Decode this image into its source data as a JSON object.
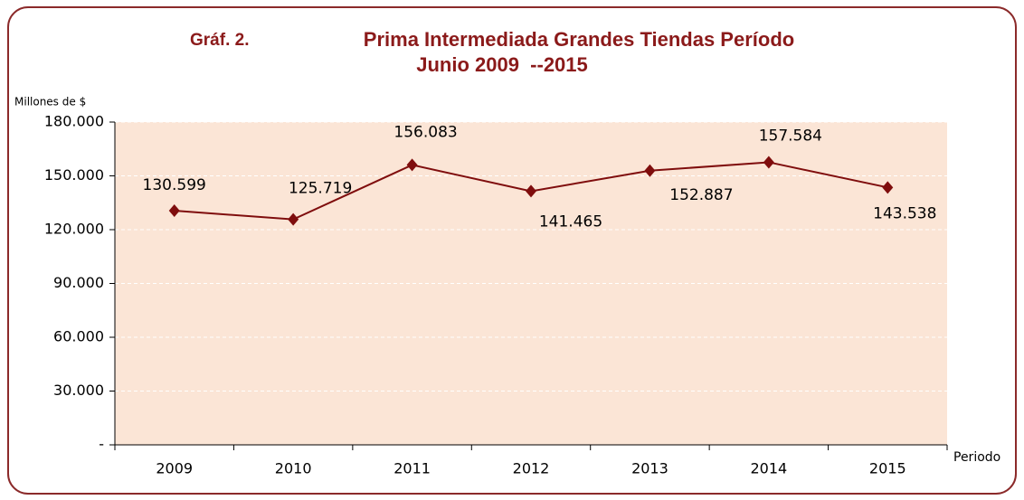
{
  "chart_data": {
    "type": "line",
    "label": "Gráf. 2.",
    "title": "Prima Intermediada Grandes Tiendas Período",
    "subtitle": "Junio 2009  --2015",
    "y_label": "Millones de $",
    "x_label": "Periodo",
    "categories": [
      "2009",
      "2010",
      "2011",
      "2012",
      "2013",
      "2014",
      "2015"
    ],
    "series": [
      {
        "name": "Prima Intermediada",
        "color": "#7f0d0d",
        "values": [
          130599,
          125719,
          156083,
          141465,
          152887,
          157584,
          143538
        ],
        "value_labels": [
          "130.599",
          "125.719",
          "156.083",
          "141.465",
          "152.887",
          "157.584",
          "143.538"
        ]
      }
    ],
    "ylim": [
      0,
      180000
    ],
    "yticks": [
      {
        "value": 0,
        "label": "-"
      },
      {
        "value": 30000,
        "label": "30.000"
      },
      {
        "value": 60000,
        "label": "60.000"
      },
      {
        "value": 90000,
        "label": "90.000"
      },
      {
        "value": 120000,
        "label": "120.000"
      },
      {
        "value": 150000,
        "label": "150.000"
      },
      {
        "value": 180000,
        "label": "180.000"
      }
    ],
    "grid": true,
    "plot_background": "#fbe5d6"
  }
}
